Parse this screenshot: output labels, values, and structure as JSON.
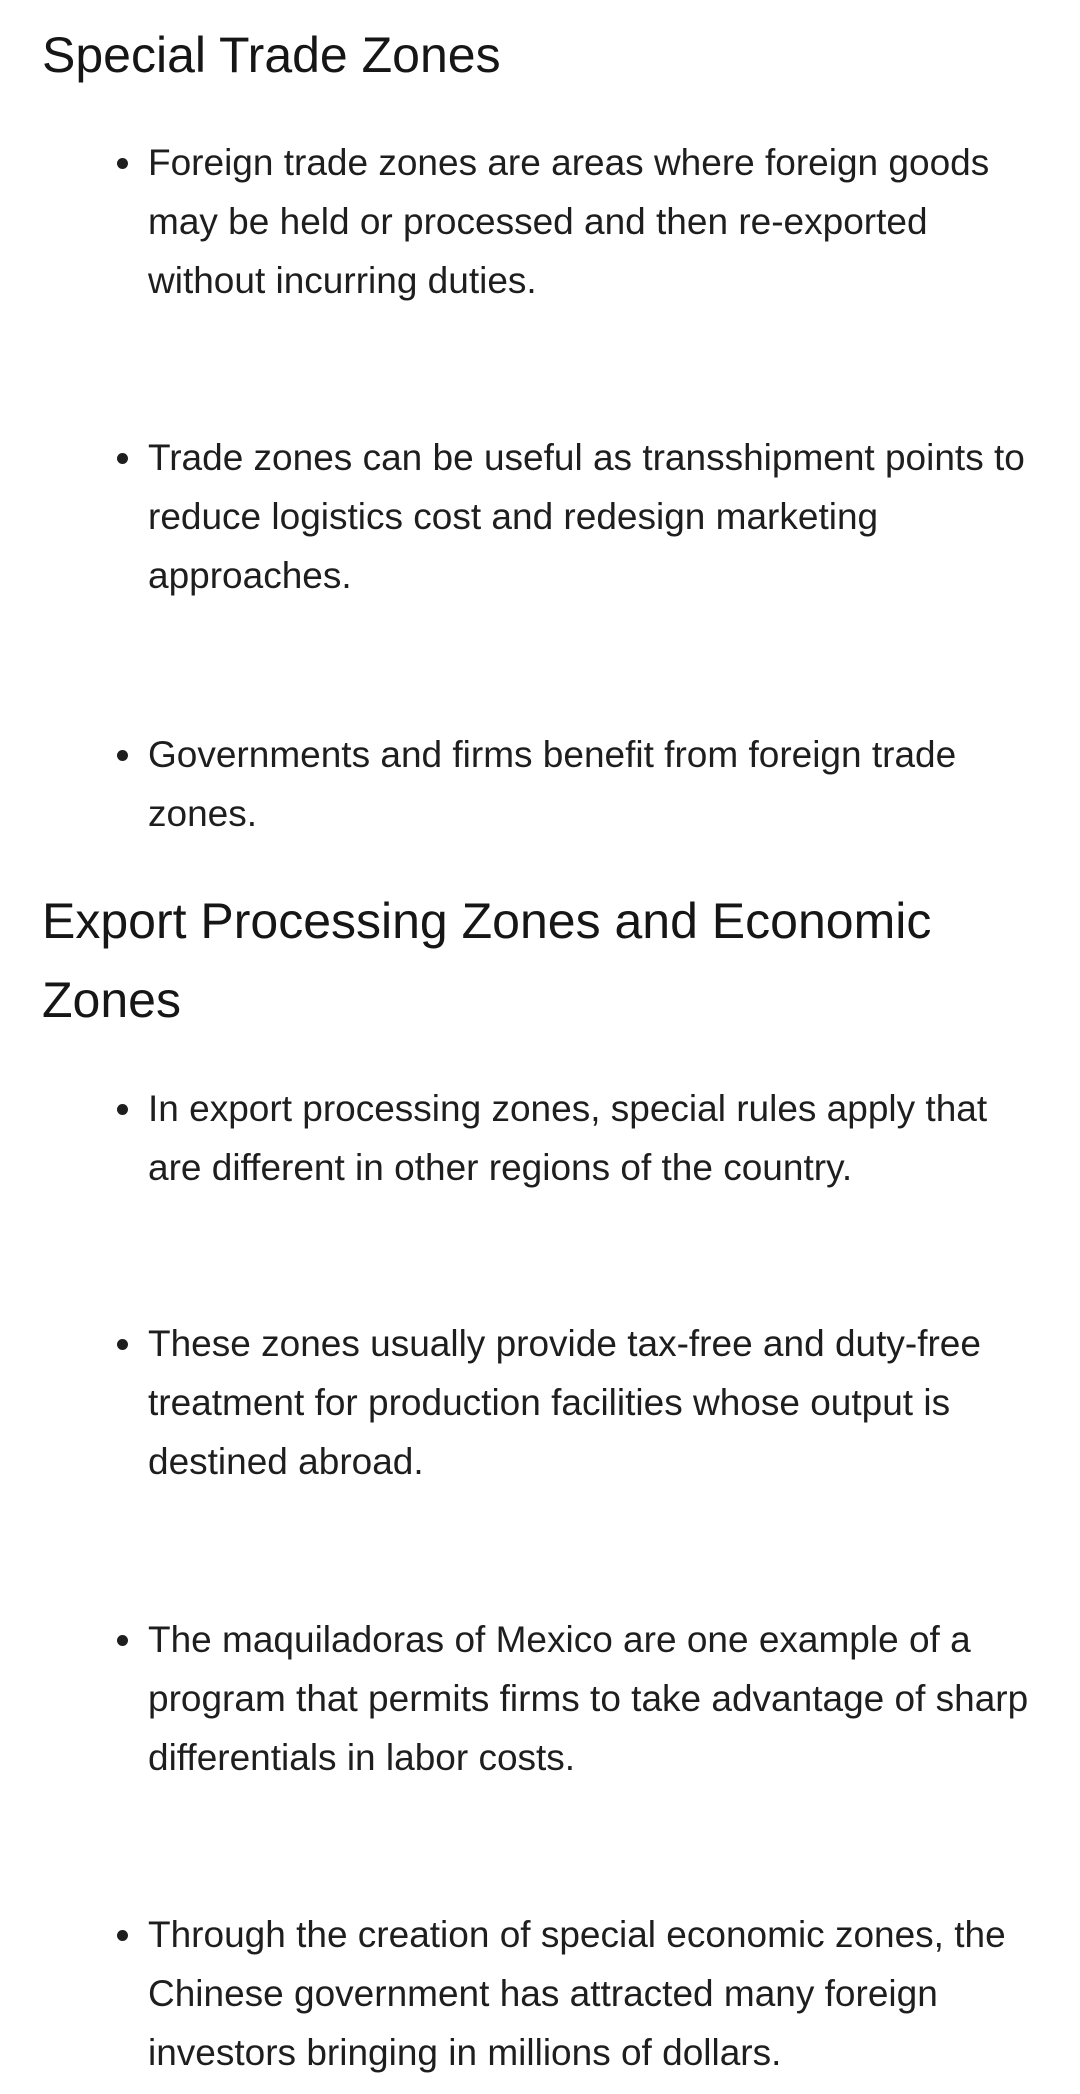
{
  "sections": [
    {
      "heading": "Special Trade Zones",
      "bullets": [
        "Foreign trade zones are areas where foreign goods may be held or processed and then re-exported without incurring duties.",
        "Trade zones can be useful as transshipment points to reduce logistics cost and redesign marketing approaches.",
        "Governments and firms benefit from foreign trade zones."
      ]
    },
    {
      "heading": "Export Processing Zones and Economic Zones",
      "bullets": [
        "In export processing zones, special rules apply that are different in other regions of the country.",
        "These zones usually provide tax-free and duty-free treatment for production facilities whose output is destined abroad.",
        "The maquiladoras of Mexico are one example of a program that permits firms to take advantage of sharp differentials in labor costs.",
        "Through the creation of special economic zones, the Chinese government has attracted many foreign investors bringing in millions of dollars."
      ]
    }
  ]
}
